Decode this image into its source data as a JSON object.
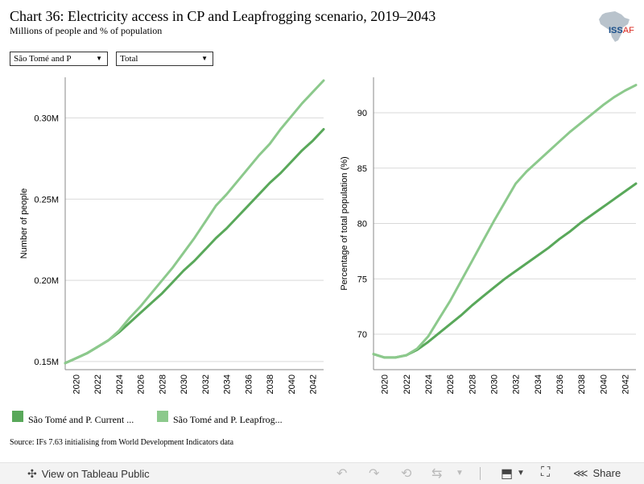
{
  "header": {
    "title": "Chart 36: Electricity access in CP and Leapfrogging scenario, 2019–2043",
    "subtitle": "Millions of people and % of population"
  },
  "logo": {
    "iss": "ISS",
    "af": "AF"
  },
  "filters": {
    "country": "São Tomé and P",
    "type": "Total"
  },
  "colors": {
    "current_path": "#59a85a",
    "leapfrogging": "#8cc98c",
    "grid": "#d9d9d9",
    "axis": "#888888"
  },
  "chart_data": [
    {
      "type": "line",
      "ylabel": "Number of people",
      "xlabel": "",
      "xlim": [
        2019,
        2043
      ],
      "ylim": [
        0.145,
        0.325
      ],
      "x_ticks": [
        2020,
        2022,
        2024,
        2026,
        2028,
        2030,
        2032,
        2034,
        2036,
        2038,
        2040,
        2042
      ],
      "y_ticks": [
        {
          "value": 0.15,
          "label": "0.15M"
        },
        {
          "value": 0.2,
          "label": "0.20M"
        },
        {
          "value": 0.25,
          "label": "0.25M"
        },
        {
          "value": 0.3,
          "label": "0.30M"
        }
      ],
      "x": [
        2019,
        2020,
        2021,
        2022,
        2023,
        2024,
        2025,
        2026,
        2027,
        2028,
        2029,
        2030,
        2031,
        2032,
        2033,
        2034,
        2035,
        2036,
        2037,
        2038,
        2039,
        2040,
        2041,
        2042,
        2043
      ],
      "series": [
        {
          "name": "São Tomé and P. Current ...",
          "values": [
            0.149,
            0.152,
            0.155,
            0.159,
            0.163,
            0.168,
            0.174,
            0.18,
            0.186,
            0.192,
            0.199,
            0.206,
            0.212,
            0.219,
            0.226,
            0.232,
            0.239,
            0.246,
            0.253,
            0.26,
            0.266,
            0.273,
            0.28,
            0.286,
            0.293
          ]
        },
        {
          "name": "São Tomé and P. Leapfrog...",
          "values": [
            0.149,
            0.152,
            0.155,
            0.159,
            0.163,
            0.169,
            0.177,
            0.184,
            0.192,
            0.2,
            0.208,
            0.217,
            0.226,
            0.236,
            0.246,
            0.253,
            0.261,
            0.269,
            0.277,
            0.284,
            0.293,
            0.301,
            0.309,
            0.316,
            0.323
          ]
        }
      ]
    },
    {
      "type": "line",
      "ylabel": "Percentage of total population (%)",
      "xlabel": "",
      "xlim": [
        2019,
        2043
      ],
      "ylim": [
        66.8,
        93.2
      ],
      "x_ticks": [
        2020,
        2022,
        2024,
        2026,
        2028,
        2030,
        2032,
        2034,
        2036,
        2038,
        2040,
        2042
      ],
      "y_ticks": [
        {
          "value": 70,
          "label": "70"
        },
        {
          "value": 75,
          "label": "75"
        },
        {
          "value": 80,
          "label": "80"
        },
        {
          "value": 85,
          "label": "85"
        },
        {
          "value": 90,
          "label": "90"
        }
      ],
      "x": [
        2019,
        2020,
        2021,
        2022,
        2023,
        2024,
        2025,
        2026,
        2027,
        2028,
        2029,
        2030,
        2031,
        2032,
        2033,
        2034,
        2035,
        2036,
        2037,
        2038,
        2039,
        2040,
        2041,
        2042,
        2043
      ],
      "series": [
        {
          "name": "São Tomé and P. Current ...",
          "values": [
            68.2,
            67.9,
            67.9,
            68.1,
            68.6,
            69.3,
            70.1,
            70.9,
            71.7,
            72.6,
            73.4,
            74.2,
            75.0,
            75.7,
            76.4,
            77.1,
            77.8,
            78.6,
            79.3,
            80.1,
            80.8,
            81.5,
            82.2,
            82.9,
            83.6
          ]
        },
        {
          "name": "São Tomé and P. Leapfrog...",
          "values": [
            68.2,
            67.9,
            67.9,
            68.1,
            68.7,
            69.8,
            71.4,
            73.0,
            74.8,
            76.6,
            78.4,
            80.2,
            81.9,
            83.6,
            84.7,
            85.6,
            86.5,
            87.4,
            88.3,
            89.1,
            89.9,
            90.7,
            91.4,
            92.0,
            92.5
          ]
        }
      ]
    }
  ],
  "legend": [
    {
      "label": "São Tomé and P. Current ..."
    },
    {
      "label": "São Tomé and P. Leapfrog..."
    }
  ],
  "source": "Source: IFs 7.63 initialising from World Development Indicators data",
  "footer": {
    "view_label": "View on Tableau Public",
    "share_label": "Share"
  }
}
